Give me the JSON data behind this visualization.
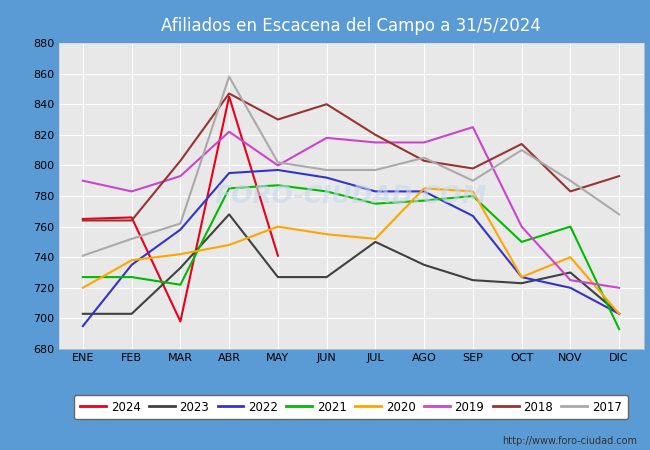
{
  "title": "Afiliados en Escacena del Campo a 31/5/2024",
  "title_bg_color": "#5b9bd5",
  "title_color": "#ffffff",
  "xlabel": "",
  "ylabel": "",
  "ylim": [
    680,
    880
  ],
  "yticks": [
    680,
    700,
    720,
    740,
    760,
    780,
    800,
    820,
    840,
    860,
    880
  ],
  "months": [
    "ENE",
    "FEB",
    "MAR",
    "ABR",
    "MAY",
    "JUN",
    "JUL",
    "AGO",
    "SEP",
    "OCT",
    "NOV",
    "DIC"
  ],
  "fig_bg_color": "#5b9bd5",
  "plot_bg_color": "#e8e8e8",
  "watermark": "FORO-CIUDAD.COM",
  "url": "http://www.foro-ciudad.com",
  "series": {
    "2024": {
      "color": "#e8001c",
      "values": [
        765,
        766,
        698,
        845,
        741,
        null,
        null,
        null,
        null,
        null,
        null,
        null
      ]
    },
    "2023": {
      "color": "#404040",
      "values": [
        703,
        703,
        733,
        768,
        727,
        727,
        750,
        735,
        725,
        723,
        730,
        703
      ]
    },
    "2022": {
      "color": "#3333cc",
      "values": [
        695,
        735,
        758,
        795,
        797,
        792,
        783,
        783,
        767,
        727,
        720,
        703
      ]
    },
    "2021": {
      "color": "#00bb00",
      "values": [
        727,
        727,
        722,
        785,
        787,
        783,
        775,
        777,
        780,
        750,
        760,
        693
      ]
    },
    "2020": {
      "color": "#ffa500",
      "values": [
        720,
        738,
        742,
        748,
        760,
        755,
        752,
        785,
        783,
        727,
        740,
        703
      ]
    },
    "2019": {
      "color": "#cc44cc",
      "values": [
        790,
        783,
        793,
        822,
        800,
        818,
        815,
        815,
        825,
        760,
        725,
        720
      ]
    },
    "2018": {
      "color": "#993333",
      "values": [
        764,
        764,
        803,
        847,
        830,
        840,
        820,
        803,
        798,
        814,
        783,
        793
      ]
    },
    "2017": {
      "color": "#aaaaaa",
      "values": [
        741,
        752,
        762,
        858,
        802,
        797,
        797,
        805,
        790,
        810,
        790,
        768
      ]
    }
  }
}
